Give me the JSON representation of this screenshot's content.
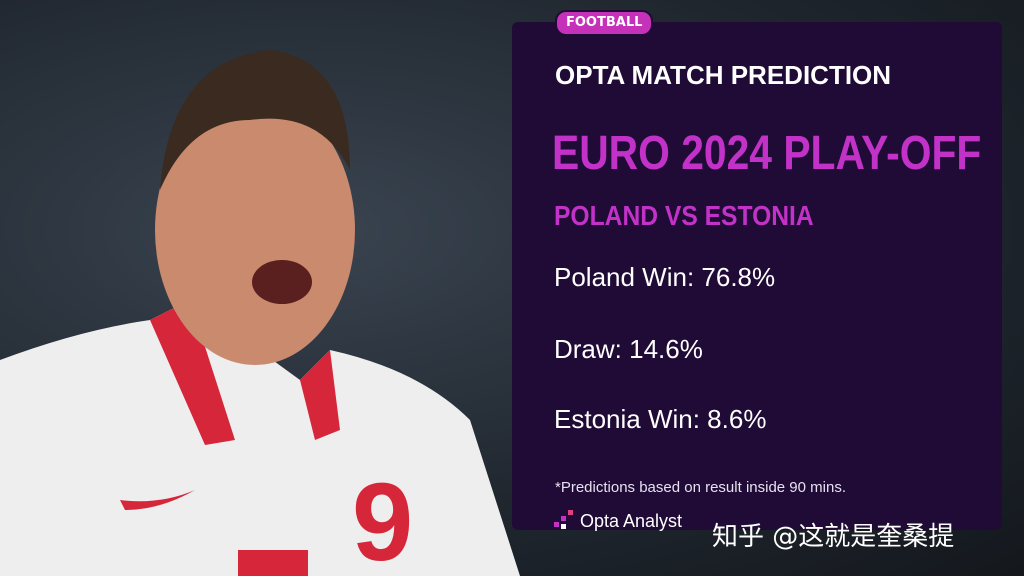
{
  "tag": "FOOTBALL",
  "title": "OPTA MATCH PREDICTION",
  "heading": "EURO 2024 PLAY-OFF",
  "subheading": "POLAND VS ESTONIA",
  "predictions": [
    "Poland Win: 76.8%",
    "Draw: 14.6%",
    "Estonia Win: 8.6%"
  ],
  "footnote": "*Predictions based on result inside 90 mins.",
  "logo": "Opta Analyst",
  "watermark": "知乎 @这就是奎桑提"
}
